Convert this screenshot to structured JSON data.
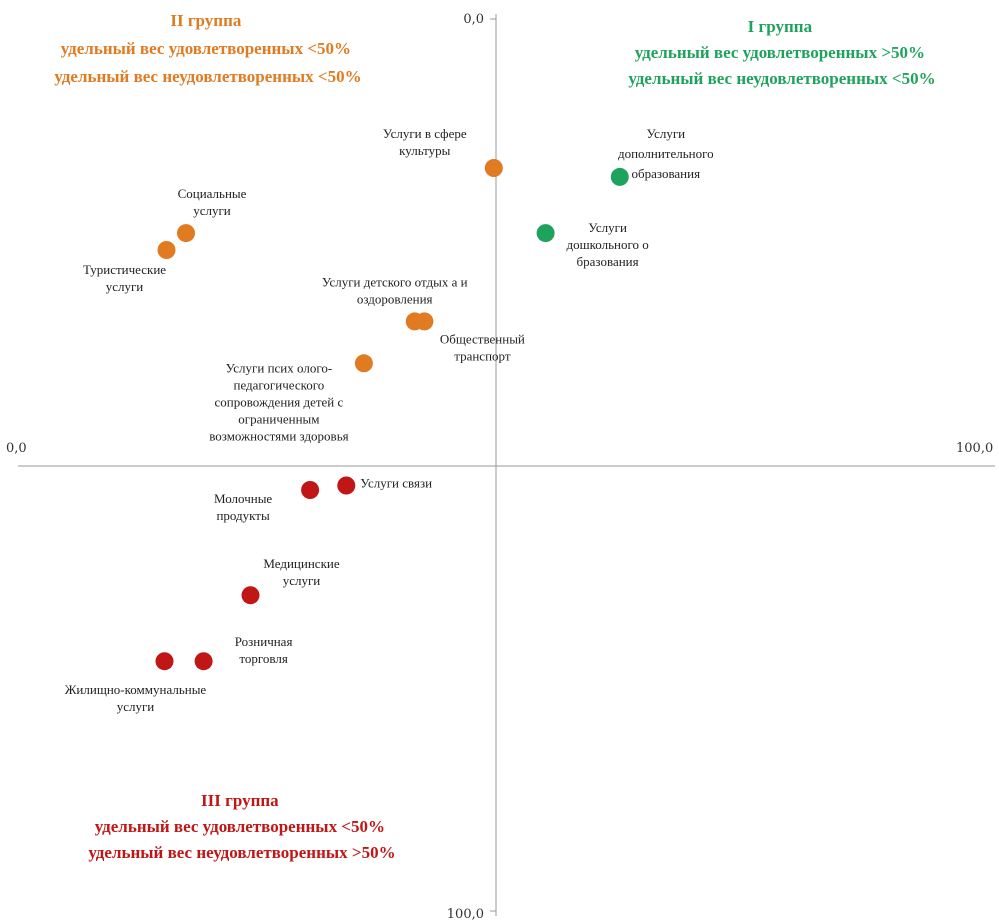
{
  "chart_data": {
    "type": "scatter",
    "xlim": [
      0,
      100
    ],
    "ylim": [
      0,
      100
    ],
    "y_inverted": true,
    "axis_cross": [
      50,
      50
    ],
    "x_tick_labels": [
      "0,0",
      "100,0"
    ],
    "y_tick_labels": [
      "0,0",
      "100,0"
    ],
    "colors": {
      "group_1": "#1fa35c",
      "group_2": "#e07b22",
      "group_3": "#c01616"
    },
    "groups": [
      {
        "id": "group_1",
        "lines": [
          "I группа",
          "удельный вес удовлетворенных  >50%",
          "удельный вес неудовлетворенных  <50%"
        ]
      },
      {
        "id": "group_2",
        "lines": [
          "II группа",
          "удельный вес удовлетворенных  <50%",
          "удельный вес неудовлетворенных  <50%"
        ]
      },
      {
        "id": "group_3",
        "lines": [
          "III группа",
          "удельный вес удовлетворенных  <50%",
          "удельный вес неудовлетворенных  >50%"
        ]
      }
    ],
    "points": [
      {
        "group": "group_1",
        "x": 61.6,
        "y": 17.7,
        "label": [
          "Услуги",
          "дополнительного",
          "образования"
        ]
      },
      {
        "group": "group_1",
        "x": 54.0,
        "y": 24.0,
        "label": [
          "Услуги",
          "дошкольного о",
          "бразования"
        ]
      },
      {
        "group": "group_2",
        "x": 48.7,
        "y": 16.7,
        "label": [
          "Услуги в сфере",
          "культуры"
        ]
      },
      {
        "group": "group_2",
        "x": 17.2,
        "y": 24.0,
        "label": [
          "Социальные",
          "услуги"
        ]
      },
      {
        "group": "group_2",
        "x": 15.2,
        "y": 25.9,
        "label": [
          "Туристические",
          "услуги"
        ]
      },
      {
        "group": "group_2",
        "x": 40.6,
        "y": 33.9,
        "label": [
          "Услуги детского отдых а и",
          "оздоровления"
        ]
      },
      {
        "group": "group_2",
        "x": 41.6,
        "y": 33.9,
        "label": [
          "Общественный",
          "транспорт"
        ]
      },
      {
        "group": "group_2",
        "x": 35.4,
        "y": 38.6,
        "label": [
          "Услуги псих олого-",
          "педагогического",
          "сопровождения детей с",
          "ограниченным",
          "возможностями здоровья"
        ]
      },
      {
        "group": "group_3",
        "x": 33.6,
        "y": 52.3,
        "label": [
          "Услуги связи"
        ]
      },
      {
        "group": "group_3",
        "x": 29.9,
        "y": 52.8,
        "label": [
          "Молочные",
          "продукты"
        ]
      },
      {
        "group": "group_3",
        "x": 23.8,
        "y": 64.6,
        "label": [
          "Медицинские",
          "услуги"
        ]
      },
      {
        "group": "group_3",
        "x": 19.0,
        "y": 72.0,
        "label": [
          "Розничная",
          "торговля"
        ]
      },
      {
        "group": "group_3",
        "x": 15.0,
        "y": 72.0,
        "label": [
          "Жилищно-коммунальные",
          "услуги"
        ]
      }
    ]
  }
}
